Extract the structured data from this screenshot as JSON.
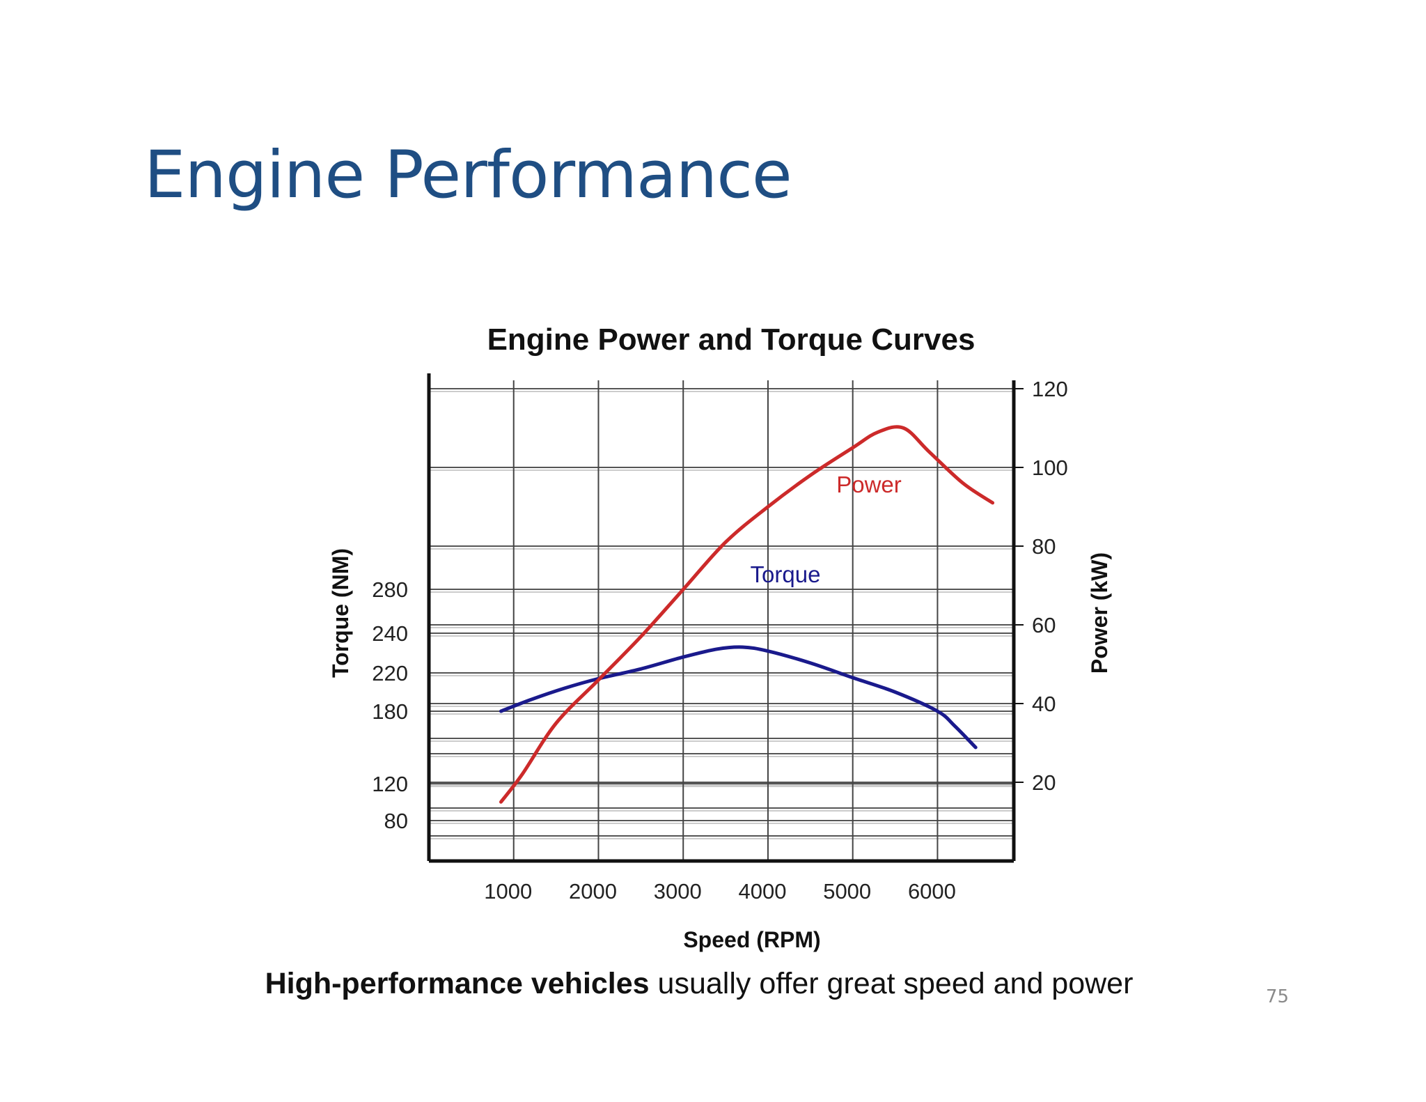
{
  "slide": {
    "title": "Engine Performance",
    "caption_bold": "High-performance vehicles",
    "caption_rest": " usually offer great speed and power",
    "page_number": "75"
  },
  "chart_data": {
    "type": "line",
    "title": "Engine Power and Torque Curves",
    "xlabel": "Speed (RPM)",
    "ylabel_left": "Torque (NM)",
    "ylabel_right": "Power (kW)",
    "x_ticks": [
      1000,
      2000,
      3000,
      4000,
      5000,
      6000
    ],
    "y_left_ticks": [
      80,
      120,
      180,
      220,
      240,
      280
    ],
    "y_right_ticks": [
      20,
      40,
      60,
      80,
      100,
      120
    ],
    "xlim": [
      0,
      6900
    ],
    "ylim_right": [
      0,
      120
    ],
    "grid": true,
    "series": [
      {
        "name": "Torque",
        "axis": "left",
        "color": "#1a1a8c",
        "points": [
          [
            850,
            180
          ],
          [
            1200,
            192
          ],
          [
            1600,
            204
          ],
          [
            2000,
            214
          ],
          [
            2500,
            222
          ],
          [
            3000,
            228
          ],
          [
            3400,
            232
          ],
          [
            3700,
            233
          ],
          [
            4000,
            231
          ],
          [
            4500,
            225
          ],
          [
            5000,
            215
          ],
          [
            5500,
            200
          ],
          [
            6000,
            180
          ],
          [
            6200,
            168
          ],
          [
            6450,
            150
          ]
        ]
      },
      {
        "name": "Power",
        "axis": "right",
        "color": "#cc2a2a",
        "points": [
          [
            850,
            15
          ],
          [
            1100,
            22
          ],
          [
            1500,
            35
          ],
          [
            2000,
            46
          ],
          [
            2500,
            57
          ],
          [
            3000,
            69
          ],
          [
            3500,
            81
          ],
          [
            4000,
            90
          ],
          [
            4500,
            98
          ],
          [
            5000,
            105
          ],
          [
            5300,
            109
          ],
          [
            5600,
            110
          ],
          [
            5900,
            104
          ],
          [
            6300,
            96
          ],
          [
            6650,
            91
          ]
        ]
      }
    ]
  },
  "colors": {
    "title": "#1f4e83",
    "torque": "#1a1a8c",
    "power": "#cc2a2a"
  }
}
